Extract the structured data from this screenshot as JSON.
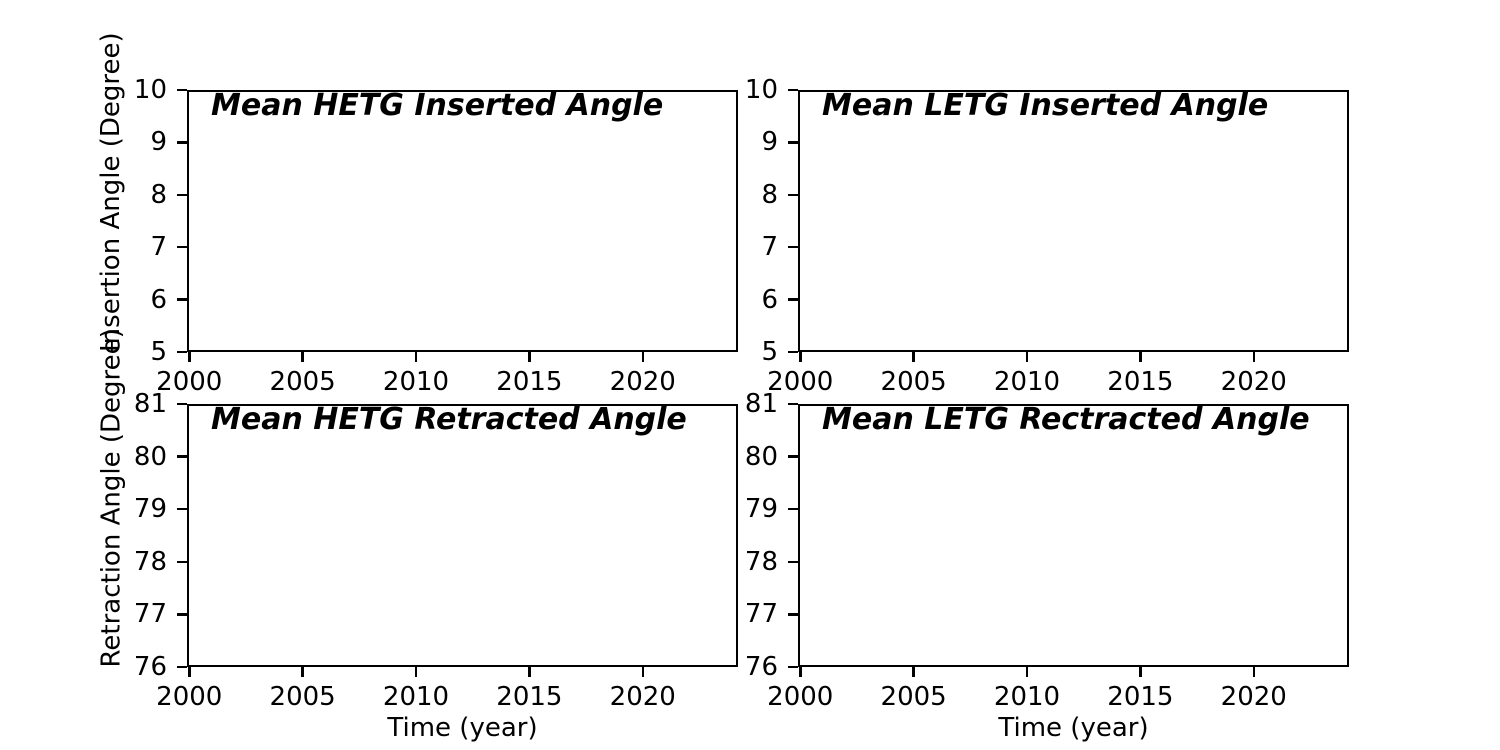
{
  "figure": {
    "background_color": "#ffffff",
    "axes_color": "#000000",
    "text_color": "#000000"
  },
  "chart_data": [
    {
      "id": "hetg-inserted",
      "type": "line",
      "title": "Mean HETG Inserted Angle",
      "xlabel": "",
      "ylabel": "Insertion Angle (Degree)",
      "xlim": [
        1999.9,
        2024.2
      ],
      "ylim": [
        5,
        10
      ],
      "x_ticks": [
        "2000",
        "2005",
        "2010",
        "2015",
        "2020"
      ],
      "x_tick_values": [
        2000,
        2005,
        2010,
        2015,
        2020
      ],
      "y_ticks": [
        "10",
        "9",
        "8",
        "7",
        "6",
        "5"
      ],
      "y_tick_values": [
        10,
        9,
        8,
        7,
        6,
        5
      ],
      "grid": false,
      "legend": null,
      "series": []
    },
    {
      "id": "letg-inserted",
      "type": "line",
      "title": "Mean LETG Inserted Angle",
      "xlabel": "",
      "ylabel": "",
      "xlim": [
        1999.9,
        2024.2
      ],
      "ylim": [
        5,
        10
      ],
      "x_ticks": [
        "2000",
        "2005",
        "2010",
        "2015",
        "2020"
      ],
      "x_tick_values": [
        2000,
        2005,
        2010,
        2015,
        2020
      ],
      "y_ticks": [
        "10",
        "9",
        "8",
        "7",
        "6",
        "5"
      ],
      "y_tick_values": [
        10,
        9,
        8,
        7,
        6,
        5
      ],
      "grid": false,
      "legend": null,
      "series": []
    },
    {
      "id": "hetg-retracted",
      "type": "line",
      "title": "Mean HETG Retracted Angle",
      "xlabel": "Time (year)",
      "ylabel": "Retraction Angle (Degree)",
      "xlim": [
        1999.9,
        2024.2
      ],
      "ylim": [
        76,
        81
      ],
      "x_ticks": [
        "2000",
        "2005",
        "2010",
        "2015",
        "2020"
      ],
      "x_tick_values": [
        2000,
        2005,
        2010,
        2015,
        2020
      ],
      "y_ticks": [
        "81",
        "80",
        "79",
        "78",
        "77",
        "76"
      ],
      "y_tick_values": [
        81,
        80,
        79,
        78,
        77,
        76
      ],
      "grid": false,
      "legend": null,
      "series": []
    },
    {
      "id": "letg-retracted",
      "type": "line",
      "title": "Mean LETG Rectracted Angle",
      "xlabel": "Time (year)",
      "ylabel": "",
      "xlim": [
        1999.9,
        2024.2
      ],
      "ylim": [
        76,
        81
      ],
      "x_ticks": [
        "2000",
        "2005",
        "2010",
        "2015",
        "2020"
      ],
      "x_tick_values": [
        2000,
        2005,
        2010,
        2015,
        2020
      ],
      "y_ticks": [
        "81",
        "80",
        "79",
        "78",
        "77",
        "76"
      ],
      "y_tick_values": [
        81,
        80,
        79,
        78,
        77,
        76
      ],
      "grid": false,
      "legend": null,
      "series": []
    }
  ]
}
